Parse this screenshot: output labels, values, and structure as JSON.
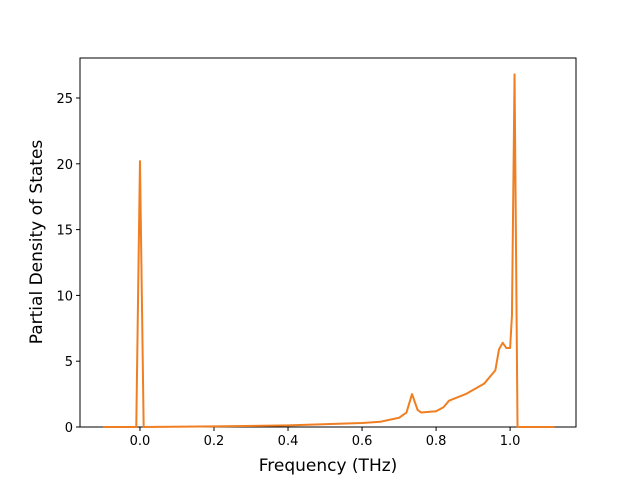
{
  "chart_data": {
    "type": "line",
    "xlabel": "Frequency (THz)",
    "ylabel": "Partial Density of States",
    "x": [
      -0.1,
      -0.01,
      0.0,
      0.01,
      0.2,
      0.4,
      0.6,
      0.65,
      0.7,
      0.72,
      0.735,
      0.75,
      0.76,
      0.8,
      0.82,
      0.835,
      0.88,
      0.93,
      0.96,
      0.97,
      0.98,
      0.99,
      1.0,
      1.005,
      1.012,
      1.02,
      1.12
    ],
    "series": [
      {
        "color": "#ef7f22",
        "values": [
          0,
          0,
          20.2,
          0,
          0.05,
          0.12,
          0.3,
          0.4,
          0.7,
          1.1,
          2.5,
          1.3,
          1.1,
          1.2,
          1.5,
          2.0,
          2.5,
          3.3,
          4.3,
          5.9,
          6.4,
          6.0,
          6.0,
          8.5,
          26.8,
          0,
          0
        ]
      }
    ],
    "xlim": [
      -0.162,
      1.178
    ],
    "ylim": [
      0,
      28.04
    ],
    "xticks": [
      {
        "value": 0,
        "label": "0.0"
      },
      0.2,
      0.4,
      0.6,
      0.8,
      {
        "value": 1,
        "label": "1.0"
      }
    ],
    "yticks": [
      0,
      5,
      10,
      15,
      20,
      25
    ]
  }
}
